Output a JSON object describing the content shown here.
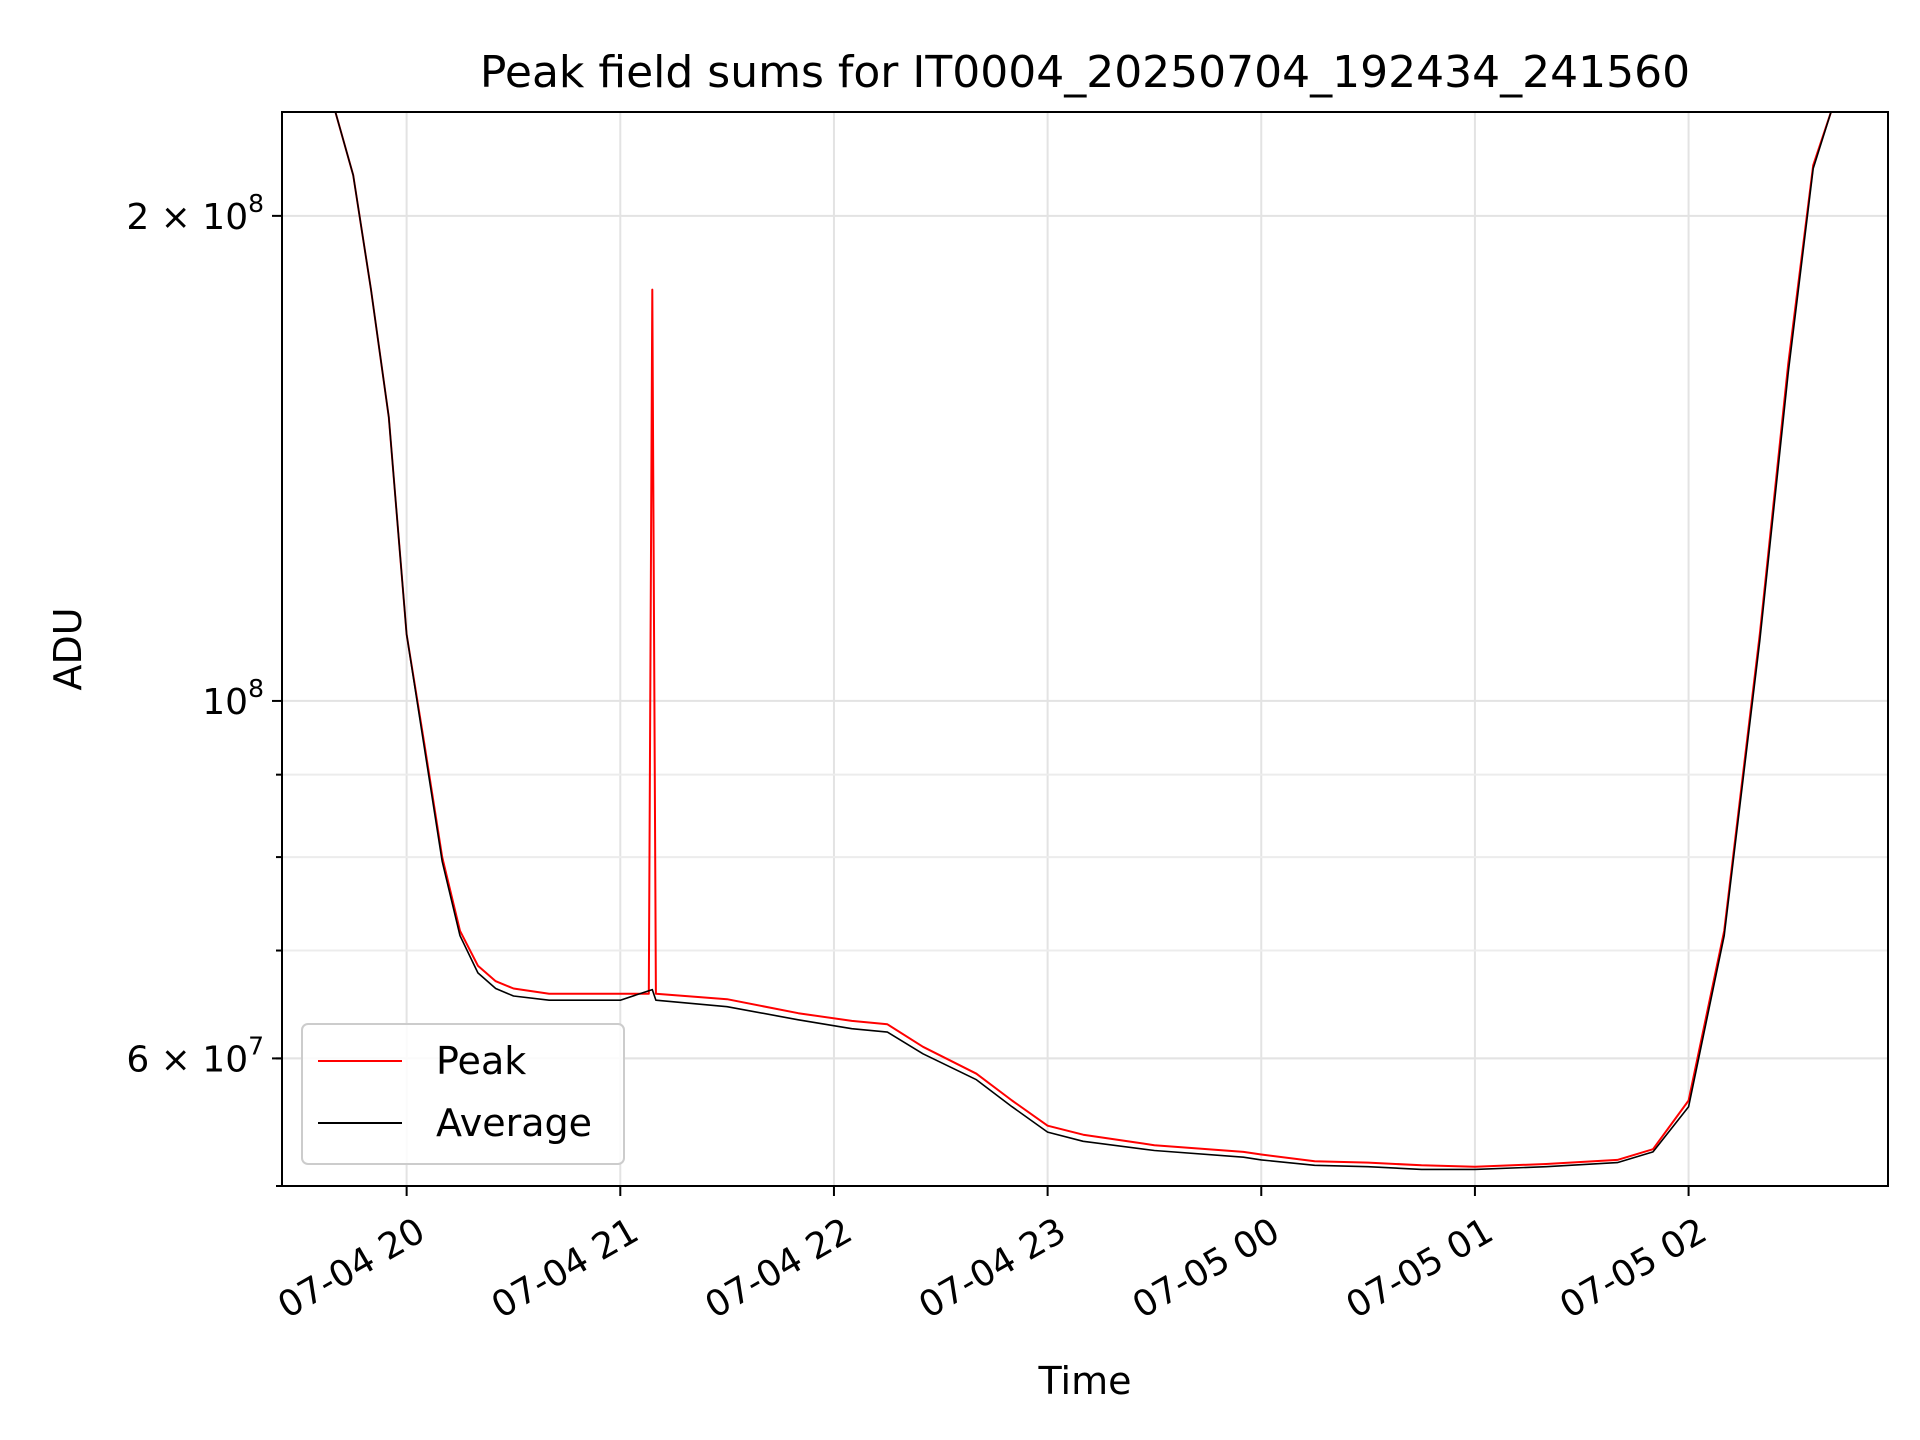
{
  "chart_data": {
    "type": "line",
    "title": "Peak field sums for IT0004_20250704_192434_241560",
    "xlabel": "Time",
    "ylabel": "ADU",
    "yscale": "log",
    "grid": true,
    "legend_position": "lower-left",
    "x_range": [
      "2025-07-04 19:25",
      "2025-07-05 02:56"
    ],
    "y_range": [
      50000000,
      232000000
    ],
    "x_ticks": [
      {
        "value": "2025-07-04 20:00",
        "label": "07-04 20"
      },
      {
        "value": "2025-07-04 21:00",
        "label": "07-04 21"
      },
      {
        "value": "2025-07-04 22:00",
        "label": "07-04 22"
      },
      {
        "value": "2025-07-04 23:00",
        "label": "07-04 23"
      },
      {
        "value": "2025-07-05 00:00",
        "label": "07-05 00"
      },
      {
        "value": "2025-07-05 01:00",
        "label": "07-05 01"
      },
      {
        "value": "2025-07-05 02:00",
        "label": "07-05 02"
      }
    ],
    "y_ticks": [
      {
        "value": 60000000,
        "mantissa": "6",
        "exponent": "7"
      },
      {
        "value": 100000000,
        "mantissa": "",
        "exponent": "8"
      },
      {
        "value": 200000000,
        "mantissa": "2",
        "exponent": "8"
      }
    ],
    "y_minor_ticks": [
      50000000,
      60000000,
      70000000,
      80000000,
      90000000,
      300000000
    ],
    "series": [
      {
        "name": "Peak",
        "color": "#ff0000",
        "points": [
          [
            "2025-07-04 19:25",
            232000000
          ],
          [
            "2025-07-04 19:40",
            232000000
          ],
          [
            "2025-07-04 19:45",
            212000000
          ],
          [
            "2025-07-04 19:50",
            180000000
          ],
          [
            "2025-07-04 19:55",
            150000000
          ],
          [
            "2025-07-04 20:00",
            110000000
          ],
          [
            "2025-07-04 20:05",
            94000000
          ],
          [
            "2025-07-04 20:10",
            80000000
          ],
          [
            "2025-07-04 20:15",
            72000000
          ],
          [
            "2025-07-04 20:20",
            68500000
          ],
          [
            "2025-07-04 20:25",
            67000000
          ],
          [
            "2025-07-04 20:30",
            66300000
          ],
          [
            "2025-07-04 20:40",
            65800000
          ],
          [
            "2025-07-04 21:00",
            65800000
          ],
          [
            "2025-07-04 21:08",
            65800000
          ],
          [
            "2025-07-04 21:09",
            180000000
          ],
          [
            "2025-07-04 21:10",
            65800000
          ],
          [
            "2025-07-04 21:30",
            65300000
          ],
          [
            "2025-07-04 21:50",
            64000000
          ],
          [
            "2025-07-04 22:05",
            63300000
          ],
          [
            "2025-07-04 22:15",
            63000000
          ],
          [
            "2025-07-04 22:25",
            61000000
          ],
          [
            "2025-07-04 22:40",
            58700000
          ],
          [
            "2025-07-04 22:50",
            56500000
          ],
          [
            "2025-07-04 23:00",
            54500000
          ],
          [
            "2025-07-04 23:10",
            53800000
          ],
          [
            "2025-07-04 23:30",
            53000000
          ],
          [
            "2025-07-04 23:55",
            52500000
          ],
          [
            "2025-07-05 00:00",
            52300000
          ],
          [
            "2025-07-05 00:15",
            51800000
          ],
          [
            "2025-07-05 00:30",
            51700000
          ],
          [
            "2025-07-05 00:45",
            51500000
          ],
          [
            "2025-07-05 01:00",
            51400000
          ],
          [
            "2025-07-05 01:20",
            51600000
          ],
          [
            "2025-07-05 01:40",
            51900000
          ],
          [
            "2025-07-05 01:50",
            52700000
          ],
          [
            "2025-07-05 02:00",
            56500000
          ],
          [
            "2025-07-05 02:10",
            72000000
          ],
          [
            "2025-07-05 02:20",
            110000000
          ],
          [
            "2025-07-05 02:28",
            162000000
          ],
          [
            "2025-07-05 02:35",
            215000000
          ],
          [
            "2025-07-05 02:40",
            232000000
          ],
          [
            "2025-07-05 02:56",
            232000000
          ]
        ]
      },
      {
        "name": "Average",
        "color": "#000000",
        "points": [
          [
            "2025-07-04 19:25",
            232000000
          ],
          [
            "2025-07-04 19:40",
            232000000
          ],
          [
            "2025-07-04 19:45",
            212000000
          ],
          [
            "2025-07-04 19:50",
            180000000
          ],
          [
            "2025-07-04 19:55",
            150000000
          ],
          [
            "2025-07-04 20:00",
            110000000
          ],
          [
            "2025-07-04 20:05",
            93500000
          ],
          [
            "2025-07-04 20:10",
            79500000
          ],
          [
            "2025-07-04 20:15",
            71500000
          ],
          [
            "2025-07-04 20:20",
            67800000
          ],
          [
            "2025-07-04 20:25",
            66300000
          ],
          [
            "2025-07-04 20:30",
            65600000
          ],
          [
            "2025-07-04 20:40",
            65200000
          ],
          [
            "2025-07-04 21:00",
            65200000
          ],
          [
            "2025-07-04 21:09",
            66200000
          ],
          [
            "2025-07-04 21:10",
            65200000
          ],
          [
            "2025-07-04 21:30",
            64600000
          ],
          [
            "2025-07-04 21:50",
            63400000
          ],
          [
            "2025-07-04 22:05",
            62600000
          ],
          [
            "2025-07-04 22:15",
            62300000
          ],
          [
            "2025-07-04 22:25",
            60400000
          ],
          [
            "2025-07-04 22:40",
            58200000
          ],
          [
            "2025-07-04 22:50",
            56000000
          ],
          [
            "2025-07-04 23:00",
            54000000
          ],
          [
            "2025-07-04 23:10",
            53300000
          ],
          [
            "2025-07-04 23:30",
            52600000
          ],
          [
            "2025-07-04 23:55",
            52100000
          ],
          [
            "2025-07-05 00:00",
            51900000
          ],
          [
            "2025-07-05 00:15",
            51500000
          ],
          [
            "2025-07-05 00:30",
            51400000
          ],
          [
            "2025-07-05 00:45",
            51200000
          ],
          [
            "2025-07-05 01:00",
            51200000
          ],
          [
            "2025-07-05 01:20",
            51400000
          ],
          [
            "2025-07-05 01:40",
            51700000
          ],
          [
            "2025-07-05 01:50",
            52500000
          ],
          [
            "2025-07-05 02:00",
            56000000
          ],
          [
            "2025-07-05 02:10",
            71500000
          ],
          [
            "2025-07-05 02:20",
            109000000
          ],
          [
            "2025-07-05 02:28",
            160000000
          ],
          [
            "2025-07-05 02:35",
            214000000
          ],
          [
            "2025-07-05 02:40",
            232000000
          ],
          [
            "2025-07-05 02:56",
            232000000
          ]
        ]
      }
    ]
  }
}
